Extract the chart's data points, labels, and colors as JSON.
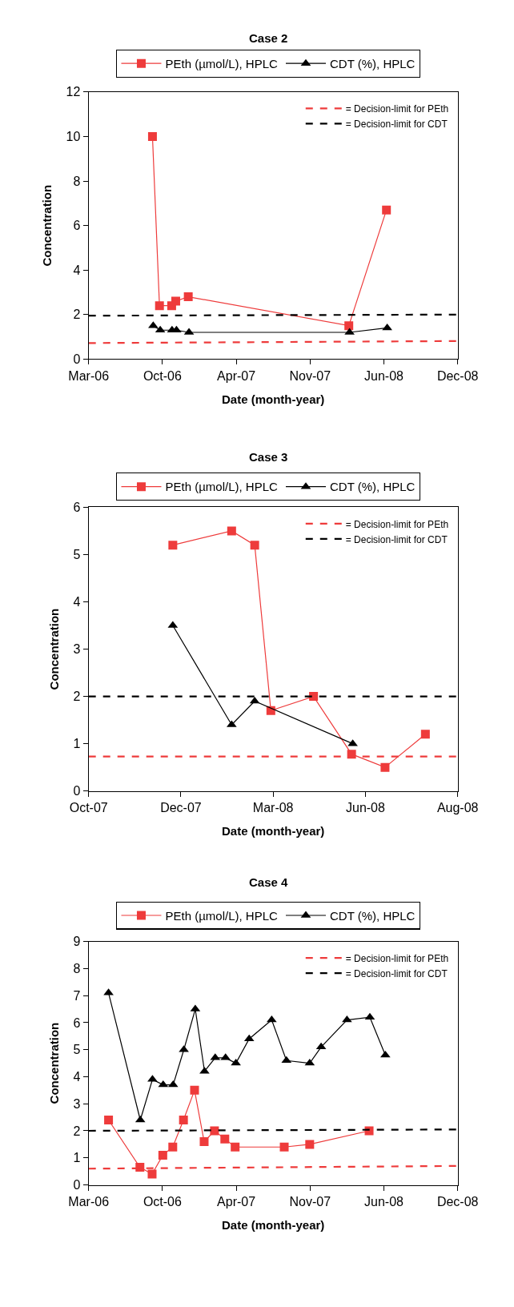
{
  "chart_data": [
    {
      "type": "line",
      "title": "Case 2",
      "xlabel": "Date (month-year)",
      "ylabel": "Concentration",
      "legend": "top",
      "xlim": [
        "2006-03-25",
        "2008-12-19"
      ],
      "xticks": [
        {
          "value": "2006-03-25",
          "label": "Mar-06"
        },
        {
          "value": "2006-10-11",
          "label": "Oct-06"
        },
        {
          "value": "2007-04-29",
          "label": "Apr-07"
        },
        {
          "value": "2007-11-15",
          "label": "Nov-07"
        },
        {
          "value": "2008-06-02",
          "label": "Jun-08"
        },
        {
          "value": "2008-12-19",
          "label": "Dec-08"
        }
      ],
      "ylim": [
        0,
        12
      ],
      "yticks": [
        0,
        2,
        4,
        6,
        8,
        10,
        12
      ],
      "series": [
        {
          "name": "PEth (µmol/L), HPLC",
          "color": "#ee3b3b",
          "marker": "square",
          "x": [
            "2006-09-14",
            "2006-10-03",
            "2006-11-05",
            "2006-11-16",
            "2006-12-20",
            "2008-02-28",
            "2008-06-09"
          ],
          "values": [
            10,
            2.4,
            2.4,
            2.6,
            2.8,
            1.5,
            6.7
          ]
        },
        {
          "name": "CDT (%), HPLC",
          "color": "#000000",
          "marker": "triangle",
          "x": [
            "2006-09-16",
            "2006-10-05",
            "2006-11-06",
            "2006-11-18",
            "2006-12-22",
            "2008-03-01",
            "2008-06-11"
          ],
          "values": [
            1.5,
            1.3,
            1.3,
            1.3,
            1.2,
            1.2,
            1.4
          ]
        },
        {
          "name": "= Decision-limit for PEth",
          "color": "#ee3b3b",
          "marker": "none",
          "line_style": "dashed",
          "x": [
            "2006-03-25",
            "2008-12-19"
          ],
          "values": [
            0.72,
            0.81
          ]
        },
        {
          "name": "= Decision-limit for CDT",
          "color": "#000000",
          "marker": "none",
          "line_style": "dashed",
          "x": [
            "2006-03-25",
            "2008-12-19"
          ],
          "values": [
            1.95,
            2.0
          ]
        }
      ]
    },
    {
      "type": "line",
      "title": "Case 3",
      "xlabel": "Date (month-year)",
      "ylabel": "Concentration",
      "legend": "top",
      "xlim": [
        "2007-10-09",
        "2008-08-24"
      ],
      "xticks": [
        {
          "value": "2007-10-09",
          "label": "Oct-07"
        },
        {
          "value": "2007-12-28",
          "label": "Dec-07"
        },
        {
          "value": "2008-03-17",
          "label": "Mar-08"
        },
        {
          "value": "2008-06-05",
          "label": "Jun-08"
        },
        {
          "value": "2008-08-24",
          "label": "Aug-08"
        }
      ],
      "ylim": [
        0,
        6
      ],
      "yticks": [
        0,
        1,
        2,
        3,
        4,
        5,
        6
      ],
      "series": [
        {
          "name": "PEth (µmol/L), HPLC",
          "color": "#ee3b3b",
          "marker": "square",
          "x": [
            "2007-12-21",
            "2008-02-10",
            "2008-03-01",
            "2008-03-15",
            "2008-04-21",
            "2008-05-24",
            "2008-06-22",
            "2008-07-27"
          ],
          "values": [
            5.2,
            5.5,
            5.2,
            1.7,
            2.0,
            0.78,
            0.5,
            1.2
          ]
        },
        {
          "name": "CDT (%), HPLC",
          "color": "#000000",
          "marker": "triangle",
          "x": [
            "2007-12-21",
            "2008-02-10",
            "2008-03-01",
            "2008-05-25"
          ],
          "values": [
            3.5,
            1.4,
            1.9,
            1.0
          ]
        },
        {
          "name": "= Decision-limit for PEth",
          "color": "#ee3b3b",
          "marker": "none",
          "line_style": "dashed",
          "x": [
            "2007-10-09",
            "2008-08-24"
          ],
          "values": [
            0.73,
            0.73
          ]
        },
        {
          "name": "= Decision-limit for CDT",
          "color": "#000000",
          "marker": "none",
          "line_style": "dashed",
          "x": [
            "2007-10-09",
            "2008-08-24"
          ],
          "values": [
            2.0,
            2.0
          ]
        }
      ]
    },
    {
      "type": "line",
      "title": "Case 4",
      "xlabel": "Date (month-year)",
      "ylabel": "Concentration",
      "legend": "top",
      "xlim": [
        "2006-03-25",
        "2008-12-19"
      ],
      "xticks": [
        {
          "value": "2006-03-25",
          "label": "Mar-06"
        },
        {
          "value": "2006-10-11",
          "label": "Oct-06"
        },
        {
          "value": "2007-04-29",
          "label": "Apr-07"
        },
        {
          "value": "2007-11-15",
          "label": "Nov-07"
        },
        {
          "value": "2008-06-02",
          "label": "Jun-08"
        },
        {
          "value": "2008-12-19",
          "label": "Dec-08"
        }
      ],
      "ylim": [
        0,
        9
      ],
      "yticks": [
        0,
        1,
        2,
        3,
        4,
        5,
        6,
        7,
        8,
        9
      ],
      "series": [
        {
          "name": "PEth (µmol/L), HPLC",
          "color": "#ee3b3b",
          "marker": "square",
          "x": [
            "2006-05-18",
            "2006-08-11",
            "2006-09-13",
            "2006-10-12",
            "2006-11-08",
            "2006-12-07",
            "2007-01-06",
            "2007-02-01",
            "2007-03-01",
            "2007-03-29",
            "2007-04-26",
            "2007-09-06",
            "2007-11-14",
            "2008-04-23"
          ],
          "values": [
            2.4,
            0.65,
            0.4,
            1.1,
            1.4,
            2.4,
            3.5,
            1.6,
            2.0,
            1.7,
            1.4,
            1.4,
            1.5,
            2.0
          ]
        },
        {
          "name": "CDT (%), HPLC",
          "color": "#000000",
          "marker": "triangle",
          "x": [
            "2006-05-18",
            "2006-08-12",
            "2006-09-14",
            "2006-10-13",
            "2006-11-09",
            "2006-12-08",
            "2007-01-08",
            "2007-02-02",
            "2007-03-03",
            "2007-03-31",
            "2007-04-28",
            "2007-06-03",
            "2007-08-03",
            "2007-09-12",
            "2007-11-14",
            "2007-12-15",
            "2008-02-23",
            "2008-04-25",
            "2008-06-06"
          ],
          "values": [
            7.1,
            2.4,
            3.9,
            3.7,
            3.7,
            5.0,
            6.5,
            4.2,
            4.7,
            4.7,
            4.5,
            5.4,
            6.1,
            4.6,
            4.5,
            5.1,
            6.1,
            6.2,
            4.8
          ]
        },
        {
          "name": "= Decision-limit for PEth",
          "color": "#ee3b3b",
          "marker": "none",
          "line_style": "dashed",
          "x": [
            "2006-03-25",
            "2008-12-19"
          ],
          "values": [
            0.6,
            0.7
          ]
        },
        {
          "name": "= Decision-limit for CDT",
          "color": "#000000",
          "marker": "none",
          "line_style": "dashed",
          "x": [
            "2006-03-25",
            "2008-12-19"
          ],
          "values": [
            2.0,
            2.05
          ]
        }
      ]
    }
  ]
}
